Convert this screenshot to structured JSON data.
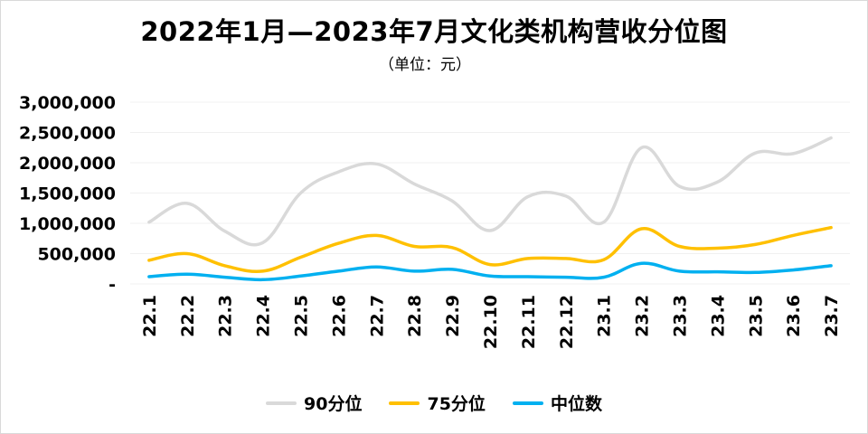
{
  "chart_data": {
    "type": "line",
    "title": "2022年1月—2023年7月文化类机构营收分位图",
    "subtitle": "（单位：元）",
    "categories": [
      "22.1",
      "22.2",
      "22.3",
      "22.4",
      "22.5",
      "22.6",
      "22.7",
      "22.8",
      "22.9",
      "22.10",
      "22.11",
      "22.12",
      "23.1",
      "23.2",
      "23.3",
      "23.4",
      "23.5",
      "23.6",
      "23.7"
    ],
    "y_tick_labels": [
      "-",
      "500,000",
      "1,000,000",
      "1,500,000",
      "2,000,000",
      "2,500,000",
      "3,000,000"
    ],
    "ylim": [
      0,
      3000000
    ],
    "grid": true,
    "legend_position": "bottom",
    "series": [
      {
        "name": "90分位",
        "color": "#d9d9d9",
        "values": [
          1020000,
          1330000,
          870000,
          680000,
          1500000,
          1850000,
          1980000,
          1650000,
          1370000,
          880000,
          1440000,
          1450000,
          1020000,
          2250000,
          1610000,
          1680000,
          2160000,
          2150000,
          2410000
        ]
      },
      {
        "name": "75分位",
        "color": "#ffc000",
        "values": [
          390000,
          500000,
          300000,
          210000,
          440000,
          670000,
          800000,
          620000,
          600000,
          320000,
          420000,
          420000,
          400000,
          910000,
          620000,
          590000,
          650000,
          800000,
          930000
        ]
      },
      {
        "name": "中位数",
        "color": "#00b0f0",
        "values": [
          120000,
          160000,
          110000,
          70000,
          130000,
          210000,
          280000,
          210000,
          240000,
          130000,
          120000,
          110000,
          110000,
          340000,
          210000,
          200000,
          190000,
          230000,
          300000
        ]
      }
    ]
  }
}
